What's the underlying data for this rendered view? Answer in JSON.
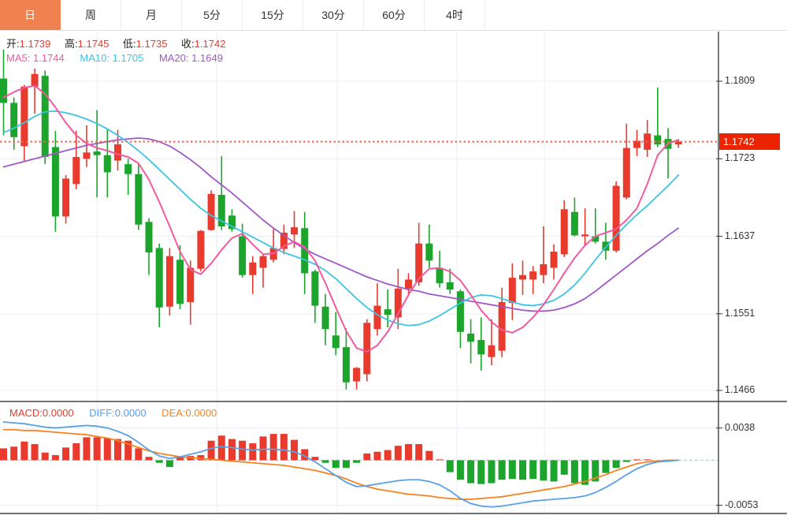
{
  "tabs": {
    "items": [
      {
        "label": "日",
        "active": true
      },
      {
        "label": "周",
        "active": false
      },
      {
        "label": "月",
        "active": false
      },
      {
        "label": "5分",
        "active": false
      },
      {
        "label": "15分",
        "active": false
      },
      {
        "label": "30分",
        "active": false
      },
      {
        "label": "60分",
        "active": false
      },
      {
        "label": "4时",
        "active": false
      }
    ]
  },
  "ohlc": {
    "open_label": "开:",
    "open": "1.1739",
    "high_label": "高:",
    "high": "1.1745",
    "low_label": "低:",
    "low": "1.1735",
    "close_label": "收:",
    "close": "1.1742"
  },
  "ma_info": {
    "ma5_label": "MA5:",
    "ma5": "1.1744",
    "ma10_label": "MA10:",
    "ma10": "1.1705",
    "ma20_label": "MA20:",
    "ma20": "1.1649"
  },
  "macd_info": {
    "macd_label": "MACD:",
    "macd": "0.0000",
    "diff_label": "DIFF:",
    "diff": "0.0000",
    "dea_label": "DEA:",
    "dea": "0.0000"
  },
  "y_axis": {
    "ticks": [
      "1.1809",
      "1.1723",
      "1.1637",
      "1.1551",
      "1.1466"
    ],
    "last_price_tag": "1.1742"
  },
  "macd_axis": {
    "ticks": [
      "0.0038",
      "-0.0053"
    ]
  },
  "colors": {
    "up": "#E83A2D",
    "down": "#1CA42C",
    "ma5": "#F25AA0",
    "ma10": "#3BC4E3",
    "ma20": "#A158C6",
    "dotted_last_price": "#F2654D",
    "price_tag_bg": "#EC2300",
    "diff_line": "#5AA0E6",
    "dea_line": "#F68220",
    "zero_dashed": "#9BD4E8",
    "grid": "#E9EEF5",
    "frame": "#222222",
    "tab_active_bg": "#EF8250"
  },
  "chart_data": {
    "type": "candlestick+macd",
    "title": "",
    "price_axis": {
      "ticks": [
        1.1809,
        1.1723,
        1.1637,
        1.1551,
        1.1466
      ],
      "last_price": 1.1742
    },
    "macd_axis_range": {
      "ticks": [
        0.0038,
        -0.0053
      ],
      "zero": 0
    },
    "legend": [
      "MA5",
      "MA10",
      "MA20",
      "MACD",
      "DIFF",
      "DEA"
    ],
    "candles_ohlc": [
      [
        1.1812,
        1.1844,
        1.1749,
        1.1785
      ],
      [
        1.1785,
        1.1791,
        1.1733,
        1.1747
      ],
      [
        1.1737,
        1.1805,
        1.172,
        1.1803
      ],
      [
        1.1803,
        1.1823,
        1.1773,
        1.1817
      ],
      [
        1.1815,
        1.1821,
        1.1717,
        1.1725
      ],
      [
        1.1736,
        1.1754,
        1.1642,
        1.1659
      ],
      [
        1.1659,
        1.1705,
        1.1651,
        1.1701
      ],
      [
        1.1695,
        1.1754,
        1.1689,
        1.1725
      ],
      [
        1.1723,
        1.176,
        1.1714,
        1.173
      ],
      [
        1.1731,
        1.1777,
        1.168,
        1.1727
      ],
      [
        1.1727,
        1.1756,
        1.168,
        1.1708
      ],
      [
        1.1721,
        1.1755,
        1.171,
        1.1739
      ],
      [
        1.1717,
        1.1723,
        1.1683,
        1.1706
      ],
      [
        1.1706,
        1.1717,
        1.1644,
        1.165
      ],
      [
        1.1653,
        1.1657,
        1.1594,
        1.1619
      ],
      [
        1.1624,
        1.1629,
        1.1536,
        1.1558
      ],
      [
        1.1559,
        1.1624,
        1.1549,
        1.1615
      ],
      [
        1.1611,
        1.1627,
        1.1556,
        1.1562
      ],
      [
        1.1564,
        1.161,
        1.1539,
        1.1602
      ],
      [
        1.1601,
        1.1644,
        1.1598,
        1.1643
      ],
      [
        1.1644,
        1.1688,
        1.1643,
        1.1684
      ],
      [
        1.1683,
        1.1726,
        1.1644,
        1.1648
      ],
      [
        1.166,
        1.1667,
        1.1642,
        1.1645
      ],
      [
        1.1637,
        1.1651,
        1.1591,
        1.1594
      ],
      [
        1.1594,
        1.1615,
        1.1573,
        1.1608
      ],
      [
        1.1602,
        1.1617,
        1.158,
        1.1615
      ],
      [
        1.1611,
        1.1645,
        1.1608,
        1.1624
      ],
      [
        1.1623,
        1.165,
        1.1617,
        1.1641
      ],
      [
        1.1639,
        1.1665,
        1.1624,
        1.1647
      ],
      [
        1.1646,
        1.1664,
        1.1573,
        1.1596
      ],
      [
        1.1598,
        1.16,
        1.1541,
        1.156
      ],
      [
        1.1559,
        1.1573,
        1.1516,
        1.1534
      ],
      [
        1.1527,
        1.1553,
        1.1505,
        1.1513
      ],
      [
        1.1514,
        1.1535,
        1.1467,
        1.1475
      ],
      [
        1.1476,
        1.1492,
        1.1467,
        1.1491
      ],
      [
        1.1484,
        1.1545,
        1.1476,
        1.1541
      ],
      [
        1.1534,
        1.1585,
        1.1527,
        1.156
      ],
      [
        1.1556,
        1.1578,
        1.1536,
        1.155
      ],
      [
        1.1547,
        1.1601,
        1.1534,
        1.1579
      ],
      [
        1.1579,
        1.1596,
        1.1571,
        1.1589
      ],
      [
        1.1586,
        1.1652,
        1.1582,
        1.1629
      ],
      [
        1.1629,
        1.165,
        1.1602,
        1.161
      ],
      [
        1.1602,
        1.1621,
        1.158,
        1.1585
      ],
      [
        1.1586,
        1.1601,
        1.1573,
        1.1578
      ],
      [
        1.1576,
        1.1578,
        1.1513,
        1.1531
      ],
      [
        1.1529,
        1.1545,
        1.1496,
        1.152
      ],
      [
        1.1522,
        1.1547,
        1.1488,
        1.1506
      ],
      [
        1.1503,
        1.1545,
        1.1494,
        1.1516
      ],
      [
        1.151,
        1.158,
        1.1503,
        1.1564
      ],
      [
        1.1563,
        1.1607,
        1.1544,
        1.1591
      ],
      [
        1.1589,
        1.161,
        1.1572,
        1.1594
      ],
      [
        1.1589,
        1.1604,
        1.1573,
        1.1598
      ],
      [
        1.1594,
        1.1648,
        1.1585,
        1.1606
      ],
      [
        1.1602,
        1.1628,
        1.1589,
        1.162
      ],
      [
        1.1617,
        1.1677,
        1.1614,
        1.1667
      ],
      [
        1.1664,
        1.168,
        1.1637,
        1.1638
      ],
      [
        1.1637,
        1.1668,
        1.1626,
        1.1639
      ],
      [
        1.1637,
        1.1668,
        1.1629,
        1.1631
      ],
      [
        1.1631,
        1.1652,
        1.1611,
        1.1621
      ],
      [
        1.1621,
        1.1698,
        1.1619,
        1.1693
      ],
      [
        1.168,
        1.1762,
        1.1678,
        1.1735
      ],
      [
        1.1735,
        1.1755,
        1.1726,
        1.1743
      ],
      [
        1.1733,
        1.1766,
        1.1725,
        1.1751
      ],
      [
        1.1749,
        1.1802,
        1.1736,
        1.1739
      ],
      [
        1.1745,
        1.1757,
        1.1701,
        1.1734
      ],
      [
        1.1739,
        1.1745,
        1.1735,
        1.1742
      ]
    ],
    "ma5": [
      1.1791,
      1.1797,
      1.1802,
      1.1804,
      1.1795,
      1.178,
      1.1763,
      1.1749,
      1.174,
      1.1735,
      1.1732,
      1.1728,
      1.1725,
      1.1718,
      1.17,
      1.1675,
      1.1648,
      1.162,
      1.16,
      1.1595,
      1.1607,
      1.1622,
      1.1635,
      1.164,
      1.1628,
      1.1617,
      1.1618,
      1.1626,
      1.1631,
      1.1625,
      1.161,
      1.1585,
      1.1558,
      1.1532,
      1.1513,
      1.1509,
      1.1516,
      1.1531,
      1.1551,
      1.1572,
      1.159,
      1.1601,
      1.1602,
      1.1598,
      1.1588,
      1.1572,
      1.1555,
      1.1542,
      1.1533,
      1.153,
      1.1536,
      1.1547,
      1.1561,
      1.1578,
      1.1596,
      1.1613,
      1.1627,
      1.1637,
      1.1641,
      1.1645,
      1.1655,
      1.1668,
      1.1695,
      1.1727,
      1.174,
      1.1744
    ],
    "ma10": [
      1.1752,
      1.1757,
      1.1763,
      1.177,
      1.1775,
      1.1776,
      1.1774,
      1.1771,
      1.1767,
      1.1762,
      1.1756,
      1.1749,
      1.1741,
      1.1732,
      1.1722,
      1.1711,
      1.17,
      1.1689,
      1.1678,
      1.1668,
      1.166,
      1.1654,
      1.1648,
      1.1642,
      1.1636,
      1.163,
      1.1624,
      1.1619,
      1.1615,
      1.1611,
      1.1606,
      1.1599,
      1.159,
      1.1579,
      1.1568,
      1.1558,
      1.155,
      1.1544,
      1.154,
      1.1538,
      1.1539,
      1.1543,
      1.1549,
      1.1556,
      1.1563,
      1.1569,
      1.1572,
      1.1571,
      1.1568,
      1.1564,
      1.1561,
      1.156,
      1.1562,
      1.1566,
      1.1573,
      1.1583,
      1.1596,
      1.1611,
      1.1625,
      1.1638,
      1.165,
      1.1661,
      1.1671,
      1.1682,
      1.1693,
      1.1705
    ],
    "ma20": [
      1.1714,
      1.1717,
      1.172,
      1.1723,
      1.1726,
      1.1729,
      1.1732,
      1.1735,
      1.1738,
      1.174,
      1.1742,
      1.1744,
      1.1745,
      1.1746,
      1.1745,
      1.1742,
      1.1737,
      1.173,
      1.1722,
      1.1713,
      1.1703,
      1.1694,
      1.1685,
      1.1675,
      1.1665,
      1.1655,
      1.1646,
      1.1638,
      1.163,
      1.1623,
      1.1617,
      1.1612,
      1.1607,
      1.1602,
      1.1597,
      1.1592,
      1.1588,
      1.1584,
      1.1581,
      1.1578,
      1.1576,
      1.1573,
      1.1571,
      1.1569,
      1.1567,
      1.1565,
      1.1563,
      1.1561,
      1.1559,
      1.1557,
      1.1555,
      1.1554,
      1.1554,
      1.1555,
      1.1558,
      1.1562,
      1.1568,
      1.1576,
      1.1585,
      1.1594,
      1.1603,
      1.1612,
      1.1621,
      1.1629,
      1.1638,
      1.1646
    ],
    "macd_hist": [
      0.0014,
      0.0016,
      0.0022,
      0.0019,
      0.0009,
      0.0006,
      0.0015,
      0.002,
      0.0027,
      0.0027,
      0.0026,
      0.0025,
      0.0023,
      0.0014,
      0.0004,
      -0.0003,
      -0.0008,
      0.0004,
      0.0005,
      0.0006,
      0.0023,
      0.0029,
      0.0025,
      0.0023,
      0.002,
      0.0028,
      0.0031,
      0.0031,
      0.0024,
      0.0013,
      0.0004,
      -0.0003,
      -0.0009,
      -0.0009,
      -0.0003,
      0.0008,
      0.001,
      0.0012,
      0.0017,
      0.0019,
      0.0019,
      0.0011,
      0.0001,
      -0.0014,
      -0.0023,
      -0.0027,
      -0.0028,
      -0.0027,
      -0.0023,
      -0.0022,
      -0.0023,
      -0.0022,
      -0.0024,
      -0.0025,
      -0.0017,
      -0.0027,
      -0.0029,
      -0.0025,
      -0.0015,
      -0.0009,
      -0.0002,
      0.0001,
      0.0001,
      0.0,
      0.0,
      0.0
    ],
    "diff_line": [
      0.0045,
      0.0044,
      0.0043,
      0.0041,
      0.0039,
      0.0038,
      0.0039,
      0.004,
      0.0041,
      0.004,
      0.0038,
      0.0034,
      0.0029,
      0.0021,
      0.0012,
      0.0005,
      0.0002,
      0.0004,
      0.0007,
      0.001,
      0.0014,
      0.0016,
      0.0015,
      0.0013,
      0.0012,
      0.0013,
      0.0013,
      0.0012,
      0.001,
      0.0005,
      -0.0002,
      -0.001,
      -0.0018,
      -0.0026,
      -0.0031,
      -0.003,
      -0.0028,
      -0.0026,
      -0.0024,
      -0.0023,
      -0.0023,
      -0.0025,
      -0.0029,
      -0.0036,
      -0.0045,
      -0.0051,
      -0.0054,
      -0.0055,
      -0.0054,
      -0.0052,
      -0.005,
      -0.0048,
      -0.0047,
      -0.0046,
      -0.0045,
      -0.0044,
      -0.0042,
      -0.0038,
      -0.0032,
      -0.0025,
      -0.0017,
      -0.001,
      -0.0005,
      -0.0002,
      -0.0001,
      0.0
    ],
    "dea_line": [
      0.0036,
      0.0036,
      0.0035,
      0.0035,
      0.0034,
      0.0033,
      0.0032,
      0.0031,
      0.003,
      0.0028,
      0.0026,
      0.0023,
      0.0019,
      0.0015,
      0.0011,
      0.0008,
      0.0006,
      0.0004,
      0.0003,
      0.0002,
      0.0001,
      0.0,
      -0.0001,
      -0.0002,
      -0.0003,
      -0.0004,
      -0.0005,
      -0.0006,
      -0.0008,
      -0.001,
      -0.0012,
      -0.0015,
      -0.0018,
      -0.0022,
      -0.0027,
      -0.0031,
      -0.0034,
      -0.0036,
      -0.0038,
      -0.004,
      -0.0041,
      -0.0042,
      -0.0044,
      -0.0045,
      -0.0046,
      -0.0046,
      -0.0045,
      -0.0044,
      -0.0043,
      -0.0041,
      -0.0039,
      -0.0037,
      -0.0035,
      -0.0033,
      -0.0031,
      -0.0028,
      -0.0025,
      -0.0021,
      -0.0017,
      -0.0012,
      -0.0008,
      -0.0004,
      -0.0002,
      -0.0001,
      0.0,
      0.0
    ]
  }
}
